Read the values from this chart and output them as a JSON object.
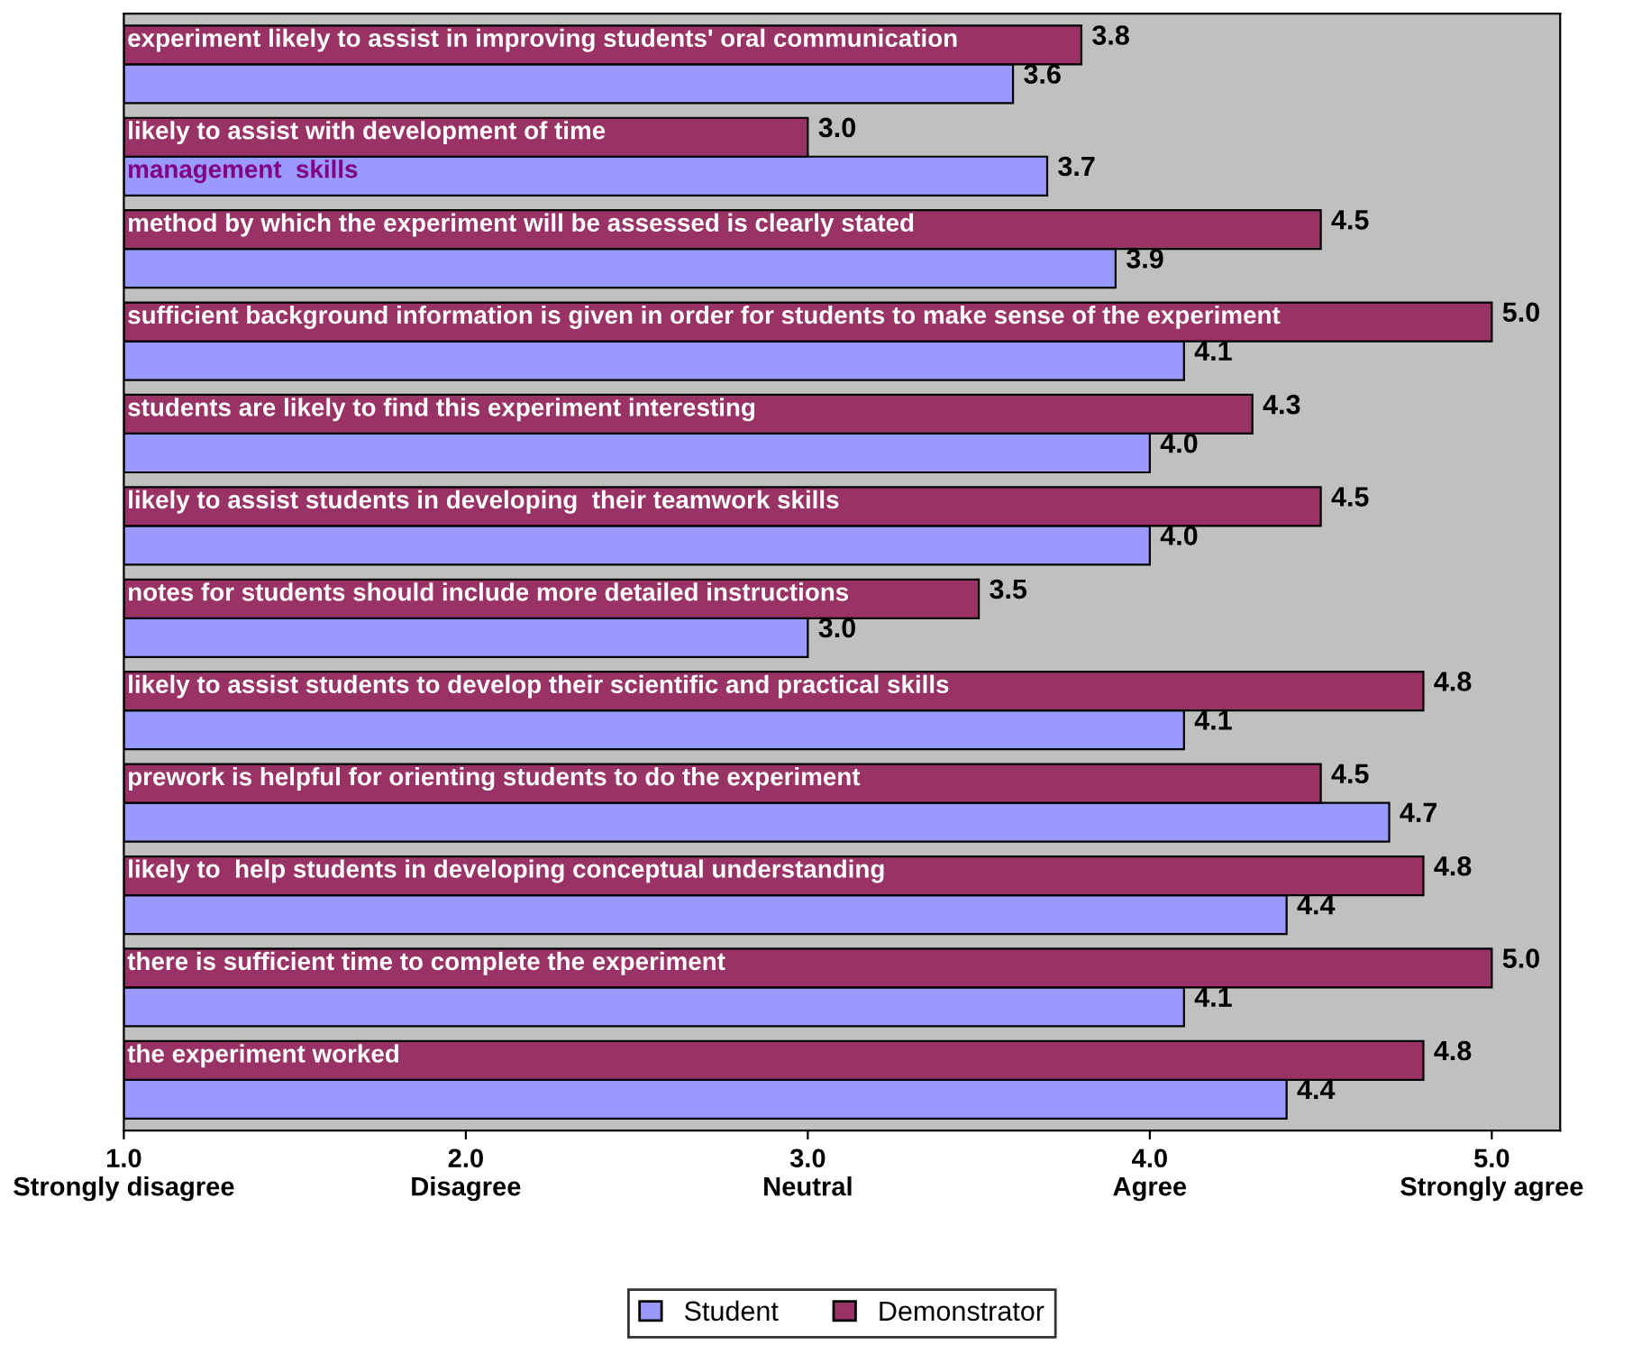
{
  "chart_data": {
    "type": "bar",
    "orientation": "horizontal",
    "categories": [
      "experiment likely to assist in improving students' oral communication",
      "likely to assist with development of time\nmanagement  skills",
      "method by which the experiment will be assessed is clearly stated",
      "sufficient background information is given in order for students to make sense of the experiment",
      "students are likely to find this experiment interesting",
      "likely to assist students in developing  their teamwork skills",
      "notes for students should include more detailed instructions",
      "likely to assist students to develop their scientific and practical skills",
      "prework is helpful for orienting students to do the experiment",
      "likely to  help students in developing conceptual understanding",
      "there is sufficient time to complete the experiment",
      "the experiment worked"
    ],
    "series": [
      {
        "name": "Student",
        "color": "#9999ff",
        "values": [
          3.6,
          3.7,
          3.9,
          4.1,
          4.0,
          4.0,
          3.0,
          4.1,
          4.7,
          4.4,
          4.1,
          4.4
        ],
        "value_labels": [
          "3.6",
          "3.7",
          "3.9",
          "4.1",
          "4.0",
          "4.0",
          "3.0",
          "4.1",
          "4.7",
          "4.4",
          "4.1",
          "4.4"
        ]
      },
      {
        "name": "Demonstrator",
        "color": "#993366",
        "values": [
          3.8,
          3.0,
          4.5,
          5.0,
          4.3,
          4.5,
          3.5,
          4.8,
          4.5,
          4.8,
          5.0,
          4.8
        ],
        "value_labels": [
          "3.8",
          "3.0",
          "4.5",
          "5.0",
          "4.3",
          "4.5",
          "3.5",
          "4.8",
          "4.5",
          "4.8",
          "5.0",
          "4.8"
        ]
      }
    ],
    "xlim": [
      1,
      5.2
    ],
    "xticks": [
      {
        "value": 1,
        "label": "1.0\nStrongly disagree"
      },
      {
        "value": 2,
        "label": "2.0\nDisagree"
      },
      {
        "value": 3,
        "label": "3.0\nNeutral"
      },
      {
        "value": 4,
        "label": "4.0\nAgree"
      },
      {
        "value": 5,
        "label": "5.0\nStrongly agree"
      }
    ],
    "grid": false,
    "legend": "bottom"
  }
}
